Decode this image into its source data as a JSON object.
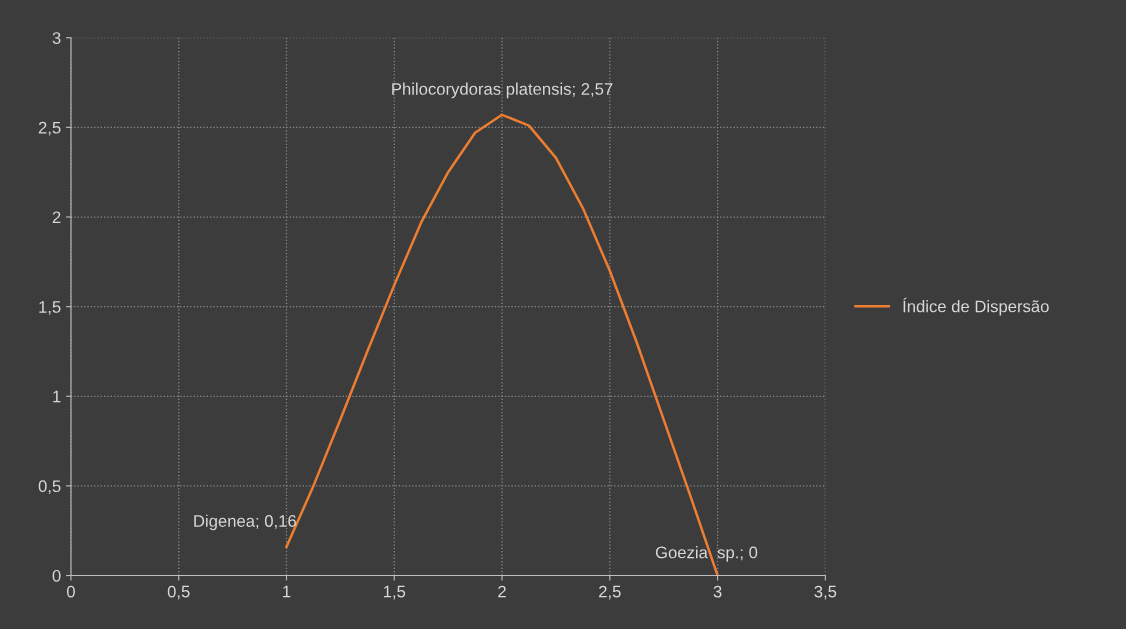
{
  "chart_data": {
    "type": "line",
    "series": [
      {
        "name": "Índice de Dispersão",
        "color": "#ed7d31",
        "x": [
          1,
          1.125,
          1.25,
          1.375,
          1.5,
          1.625,
          1.75,
          1.875,
          2,
          2.125,
          2.25,
          2.375,
          2.5,
          2.625,
          2.75,
          2.875,
          3
        ],
        "values": [
          0.16,
          0.5,
          0.87,
          1.25,
          1.62,
          1.97,
          2.25,
          2.47,
          2.57,
          2.51,
          2.33,
          2.05,
          1.7,
          1.3,
          0.87,
          0.44,
          0
        ]
      }
    ],
    "annotations": [
      {
        "text": "Digenea; 0,16",
        "x": 1,
        "y": 0.16
      },
      {
        "text": "Philocorydoras platensis; 2,57",
        "x": 2,
        "y": 2.57
      },
      {
        "text": "Goezia  sp.; 0",
        "x": 3,
        "y": 0
      }
    ],
    "xlim": [
      0,
      3.5
    ],
    "ylim": [
      0,
      3
    ],
    "xticks": [
      0,
      {
        "value": 0.5,
        "label": "0,5"
      },
      1,
      {
        "value": 1.5,
        "label": "1,5"
      },
      2,
      {
        "value": 2.5,
        "label": "2,5"
      },
      3,
      {
        "value": 3.5,
        "label": "3,5"
      }
    ],
    "yticks": [
      0,
      {
        "value": 0.5,
        "label": "0,5"
      },
      1,
      {
        "value": 1.5,
        "label": "1,5"
      },
      2,
      {
        "value": 2.5,
        "label": "2,5"
      },
      3
    ],
    "grid": true,
    "legend": "right",
    "marker": "none",
    "line_style": "solid"
  }
}
